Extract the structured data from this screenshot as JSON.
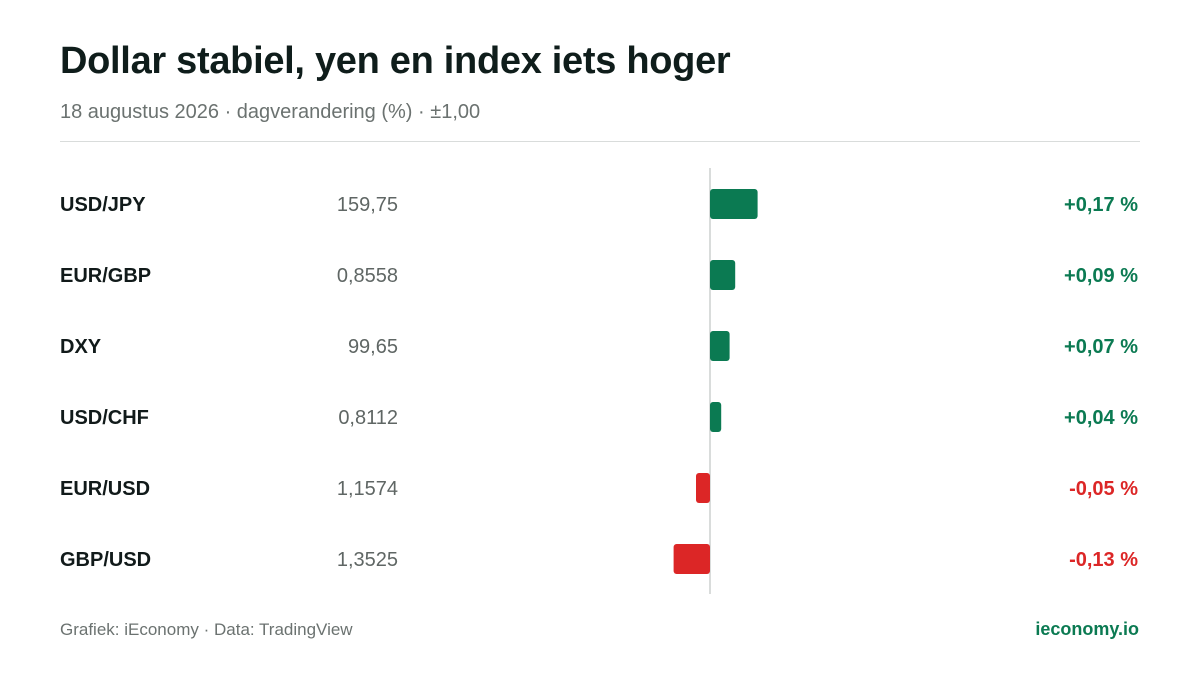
{
  "header": {
    "title": "Dollar stabiel, yen en index iets hoger",
    "subtitle": "18 augustus 2026 · dagverandering (%) · ±1,00"
  },
  "footer": {
    "credit": "Grafiek: iEconomy · Data: TradingView",
    "brand": "ieconomy.io"
  },
  "colors": {
    "positive": "#0b7a52",
    "negative": "#dc2626",
    "axis": "#d9dcdb",
    "label": "#111a1a",
    "price": "#5f6664"
  },
  "chart_data": {
    "type": "bar",
    "orientation": "horizontal",
    "xlim": [
      -1.0,
      1.0
    ],
    "unit": "%",
    "categories": [
      "USD/JPY",
      "EUR/GBP",
      "DXY",
      "USD/CHF",
      "EUR/USD",
      "GBP/USD"
    ],
    "prices": [
      "159,75",
      "0,8558",
      "99,65",
      "0,8112",
      "1,1574",
      "1,3525"
    ],
    "values": [
      0.17,
      0.09,
      0.07,
      0.04,
      -0.05,
      -0.13
    ],
    "value_labels": [
      "+0,17 %",
      "+0,09 %",
      "+0,07 %",
      "+0,04 %",
      "-0,05 %",
      "-0,13 %"
    ]
  }
}
